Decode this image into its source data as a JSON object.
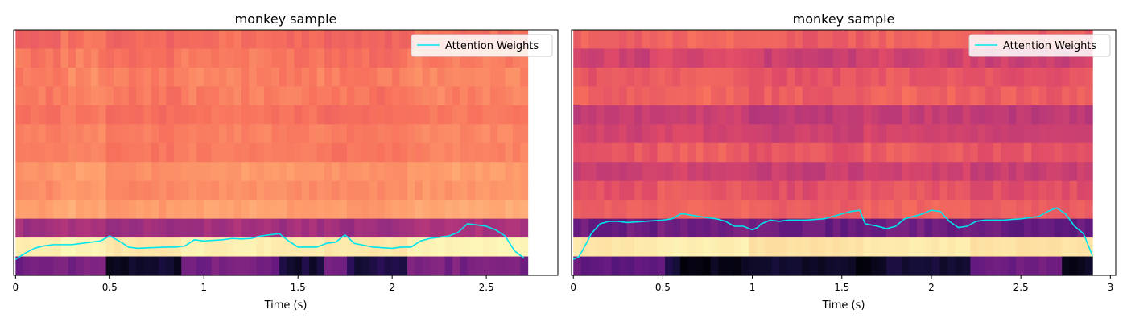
{
  "chart_data": [
    {
      "type": "heatmap",
      "title": "monkey sample",
      "xlabel": "Time (s)",
      "ylabel": "",
      "xlim": [
        -0.01,
        2.88
      ],
      "data_end_time": 2.72,
      "x_ticks": [
        0,
        0.5,
        1,
        1.5,
        2,
        2.5
      ],
      "x_tick_labels": [
        "0",
        "0.5",
        "1",
        "1.5",
        "2",
        "2.5"
      ],
      "grid": false,
      "legend": {
        "position": "top-right",
        "entries": [
          "Attention Weights"
        ]
      },
      "colormap": "magma",
      "band_base_levels": [
        0.68,
        0.71,
        0.73,
        0.72,
        0.7,
        0.73,
        0.72,
        0.78,
        0.76,
        0.8,
        0.45,
        0.96,
        0.33
      ],
      "band_texture": [
        0.03,
        0.03,
        0.03,
        0.03,
        0.02,
        0.02,
        0.02,
        0.02,
        0.02,
        0.02,
        0.03,
        0.01,
        0.04
      ],
      "time_segments": [
        {
          "start": 0.0,
          "end": 0.25,
          "offset": 0.0
        },
        {
          "start": 0.25,
          "end": 0.5,
          "offset": 0.02
        },
        {
          "start": 0.5,
          "end": 0.9,
          "offset": -0.01
        },
        {
          "start": 0.9,
          "end": 1.35,
          "offset": 0.01
        },
        {
          "start": 1.35,
          "end": 1.65,
          "offset": 0.0
        },
        {
          "start": 1.65,
          "end": 2.1,
          "offset": -0.01
        },
        {
          "start": 2.1,
          "end": 2.72,
          "offset": 0.02
        }
      ],
      "dark_regions": [
        {
          "band": 12,
          "start": 0.5,
          "end": 0.9,
          "level": 0.08
        },
        {
          "band": 12,
          "start": 1.4,
          "end": 1.65,
          "level": 0.1
        },
        {
          "band": 12,
          "start": 1.75,
          "end": 2.1,
          "level": 0.12
        }
      ],
      "series": [
        {
          "name": "Attention Weights",
          "color": "#00e5ee",
          "x": [
            0,
            0.05,
            0.1,
            0.15,
            0.2,
            0.3,
            0.35,
            0.4,
            0.45,
            0.5,
            0.55,
            0.6,
            0.65,
            0.7,
            0.8,
            0.85,
            0.9,
            0.95,
            1.0,
            1.1,
            1.15,
            1.2,
            1.25,
            1.3,
            1.35,
            1.4,
            1.45,
            1.5,
            1.6,
            1.65,
            1.7,
            1.75,
            1.8,
            1.9,
            2.0,
            2.05,
            2.1,
            2.15,
            2.2,
            2.3,
            2.35,
            2.4,
            2.45,
            2.5,
            2.55,
            2.6,
            2.65,
            2.7
          ],
          "y": [
            0.065,
            0.09,
            0.11,
            0.12,
            0.125,
            0.125,
            0.13,
            0.135,
            0.14,
            0.16,
            0.14,
            0.115,
            0.11,
            0.112,
            0.115,
            0.115,
            0.12,
            0.145,
            0.14,
            0.145,
            0.15,
            0.148,
            0.15,
            0.16,
            0.165,
            0.17,
            0.14,
            0.115,
            0.115,
            0.13,
            0.135,
            0.165,
            0.13,
            0.115,
            0.11,
            0.115,
            0.115,
            0.14,
            0.15,
            0.16,
            0.175,
            0.21,
            0.205,
            0.2,
            0.185,
            0.16,
            0.1,
            0.07
          ]
        }
      ]
    },
    {
      "type": "heatmap",
      "title": "monkey sample",
      "xlabel": "Time (s)",
      "ylabel": "",
      "xlim": [
        -0.01,
        3.03
      ],
      "data_end_time": 2.9,
      "x_ticks": [
        0,
        0.5,
        1,
        1.5,
        2,
        2.5,
        3
      ],
      "x_tick_labels": [
        "0",
        "0.5",
        "1",
        "1.5",
        "2",
        "2.5",
        "3"
      ],
      "grid": false,
      "legend": {
        "position": "top-right",
        "entries": [
          "Attention Weights"
        ]
      },
      "colormap": "magma",
      "band_base_levels": [
        0.66,
        0.56,
        0.63,
        0.66,
        0.53,
        0.56,
        0.64,
        0.55,
        0.62,
        0.66,
        0.32,
        0.95,
        0.09
      ],
      "band_texture": [
        0.03,
        0.04,
        0.03,
        0.03,
        0.03,
        0.03,
        0.03,
        0.03,
        0.03,
        0.02,
        0.04,
        0.01,
        0.03
      ],
      "time_segments": [
        {
          "start": 0.0,
          "end": 0.45,
          "offset": 0.0
        },
        {
          "start": 0.45,
          "end": 1.0,
          "offset": 0.02
        },
        {
          "start": 1.0,
          "end": 1.6,
          "offset": -0.01
        },
        {
          "start": 1.6,
          "end": 2.2,
          "offset": 0.01
        },
        {
          "start": 2.2,
          "end": 2.9,
          "offset": -0.01
        }
      ],
      "dark_regions": [
        {
          "band": 12,
          "start": 0.0,
          "end": 0.2,
          "level": 0.3
        },
        {
          "band": 12,
          "start": 0.2,
          "end": 0.5,
          "level": 0.28
        },
        {
          "band": 12,
          "start": 0.6,
          "end": 1.0,
          "level": 0.04
        },
        {
          "band": 12,
          "start": 1.55,
          "end": 1.75,
          "level": 0.04
        },
        {
          "band": 12,
          "start": 2.2,
          "end": 2.85,
          "level": 0.32
        },
        {
          "band": 12,
          "start": 2.75,
          "end": 2.9,
          "level": 0.05
        }
      ],
      "series": [
        {
          "name": "Attention Weights",
          "color": "#00e5ee",
          "x": [
            0,
            0.03,
            0.05,
            0.08,
            0.1,
            0.15,
            0.2,
            0.25,
            0.3,
            0.4,
            0.5,
            0.55,
            0.6,
            0.62,
            0.7,
            0.8,
            0.85,
            0.9,
            0.95,
            1.0,
            1.03,
            1.05,
            1.1,
            1.15,
            1.2,
            1.3,
            1.4,
            1.5,
            1.55,
            1.6,
            1.63,
            1.7,
            1.75,
            1.8,
            1.85,
            1.9,
            1.95,
            2.0,
            2.05,
            2.1,
            2.15,
            2.2,
            2.25,
            2.3,
            2.4,
            2.5,
            2.6,
            2.65,
            2.7,
            2.75,
            2.8,
            2.85,
            2.9
          ],
          "y": [
            0.065,
            0.075,
            0.1,
            0.14,
            0.17,
            0.21,
            0.22,
            0.22,
            0.215,
            0.22,
            0.225,
            0.23,
            0.25,
            0.25,
            0.24,
            0.23,
            0.22,
            0.2,
            0.2,
            0.185,
            0.195,
            0.21,
            0.225,
            0.22,
            0.225,
            0.225,
            0.23,
            0.25,
            0.26,
            0.265,
            0.21,
            0.2,
            0.19,
            0.2,
            0.23,
            0.24,
            0.25,
            0.265,
            0.26,
            0.22,
            0.195,
            0.2,
            0.22,
            0.225,
            0.225,
            0.23,
            0.24,
            0.26,
            0.275,
            0.25,
            0.2,
            0.17,
            0.08
          ]
        }
      ]
    }
  ]
}
